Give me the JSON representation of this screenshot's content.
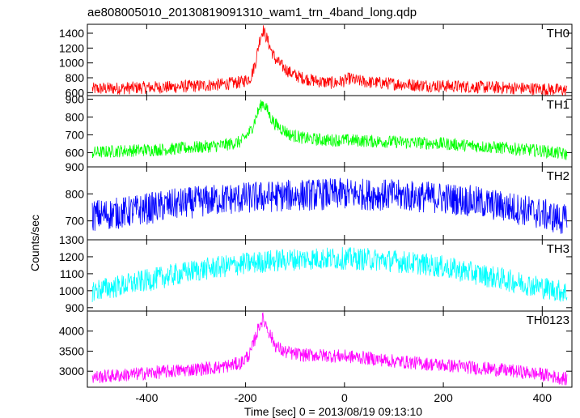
{
  "chart_data": {
    "type": "line",
    "title": "ae808005010_20130819091310_wam1_trn_4band_long.qdp",
    "xlabel": "Time [sec] 0 = 2013/08/19 09:13:10",
    "ylabel": "Counts/sec",
    "xlim": [
      -520,
      460
    ],
    "xticks": [
      -400,
      -200,
      0,
      200,
      400
    ],
    "panels": [
      {
        "name": "TH0",
        "color": "#ff0000",
        "ylim": [
          560,
          1520
        ],
        "yticks": [
          600,
          800,
          1000,
          1200,
          1400
        ],
        "x": [
          -510,
          -450,
          -400,
          -350,
          -300,
          -250,
          -210,
          -190,
          -180,
          -172,
          -165,
          -158,
          -150,
          -140,
          -125,
          -110,
          -95,
          -80,
          -60,
          -40,
          -20,
          0,
          10,
          25,
          50,
          100,
          150,
          200,
          250,
          300,
          350,
          400,
          450
        ],
        "y": [
          650,
          660,
          670,
          675,
          690,
          710,
          740,
          800,
          1000,
          1300,
          1450,
          1350,
          1200,
          1050,
          950,
          870,
          820,
          790,
          760,
          740,
          730,
          760,
          790,
          760,
          740,
          720,
          700,
          690,
          680,
          670,
          660,
          650,
          630
        ]
      },
      {
        "name": "TH1",
        "color": "#00ff00",
        "ylim": [
          520,
          920
        ],
        "yticks": [
          600,
          700,
          800,
          900
        ],
        "x": [
          -510,
          -450,
          -400,
          -350,
          -300,
          -250,
          -210,
          -190,
          -180,
          -172,
          -165,
          -158,
          -150,
          -140,
          -125,
          -110,
          -95,
          -80,
          -60,
          -40,
          -20,
          0,
          25,
          50,
          100,
          150,
          200,
          250,
          300,
          350,
          400,
          450
        ],
        "y": [
          600,
          610,
          615,
          620,
          630,
          640,
          660,
          720,
          790,
          850,
          880,
          850,
          800,
          760,
          730,
          700,
          690,
          680,
          675,
          670,
          670,
          670,
          668,
          665,
          660,
          655,
          650,
          640,
          630,
          620,
          610,
          590
        ]
      },
      {
        "name": "TH2",
        "color": "#0000ff",
        "ylim": [
          630,
          900
        ],
        "yticks": [
          700,
          800,
          900
        ],
        "x": [
          -510,
          -450,
          -400,
          -350,
          -300,
          -250,
          -200,
          -150,
          -100,
          -50,
          0,
          50,
          100,
          150,
          200,
          250,
          300,
          350,
          400,
          450
        ],
        "y": [
          720,
          730,
          745,
          760,
          770,
          780,
          785,
          790,
          795,
          798,
          800,
          798,
          795,
          790,
          785,
          775,
          760,
          745,
          725,
          700
        ]
      },
      {
        "name": "TH3",
        "color": "#00ffff",
        "ylim": [
          880,
          1300
        ],
        "yticks": [
          900,
          1000,
          1100,
          1200,
          1300
        ],
        "x": [
          -510,
          -450,
          -400,
          -350,
          -300,
          -250,
          -200,
          -150,
          -100,
          -50,
          0,
          50,
          100,
          150,
          200,
          250,
          300,
          350,
          400,
          450
        ],
        "y": [
          1000,
          1030,
          1060,
          1090,
          1120,
          1140,
          1160,
          1175,
          1185,
          1190,
          1190,
          1185,
          1175,
          1160,
          1140,
          1110,
          1080,
          1050,
          1020,
          990
        ]
      },
      {
        "name": "TH0123",
        "color": "#ff00ff",
        "ylim": [
          2600,
          4500
        ],
        "yticks": [
          3000,
          3500,
          4000
        ],
        "x": [
          -510,
          -450,
          -400,
          -350,
          -300,
          -250,
          -210,
          -190,
          -180,
          -172,
          -165,
          -158,
          -150,
          -140,
          -125,
          -110,
          -95,
          -80,
          -60,
          -40,
          -20,
          0,
          25,
          50,
          100,
          150,
          200,
          250,
          300,
          350,
          400,
          450
        ],
        "y": [
          2850,
          2900,
          2950,
          3000,
          3050,
          3100,
          3200,
          3450,
          3850,
          4150,
          4300,
          4150,
          3900,
          3650,
          3500,
          3450,
          3420,
          3400,
          3400,
          3390,
          3380,
          3370,
          3350,
          3320,
          3250,
          3200,
          3150,
          3100,
          3050,
          2990,
          2920,
          2800
        ]
      }
    ]
  }
}
